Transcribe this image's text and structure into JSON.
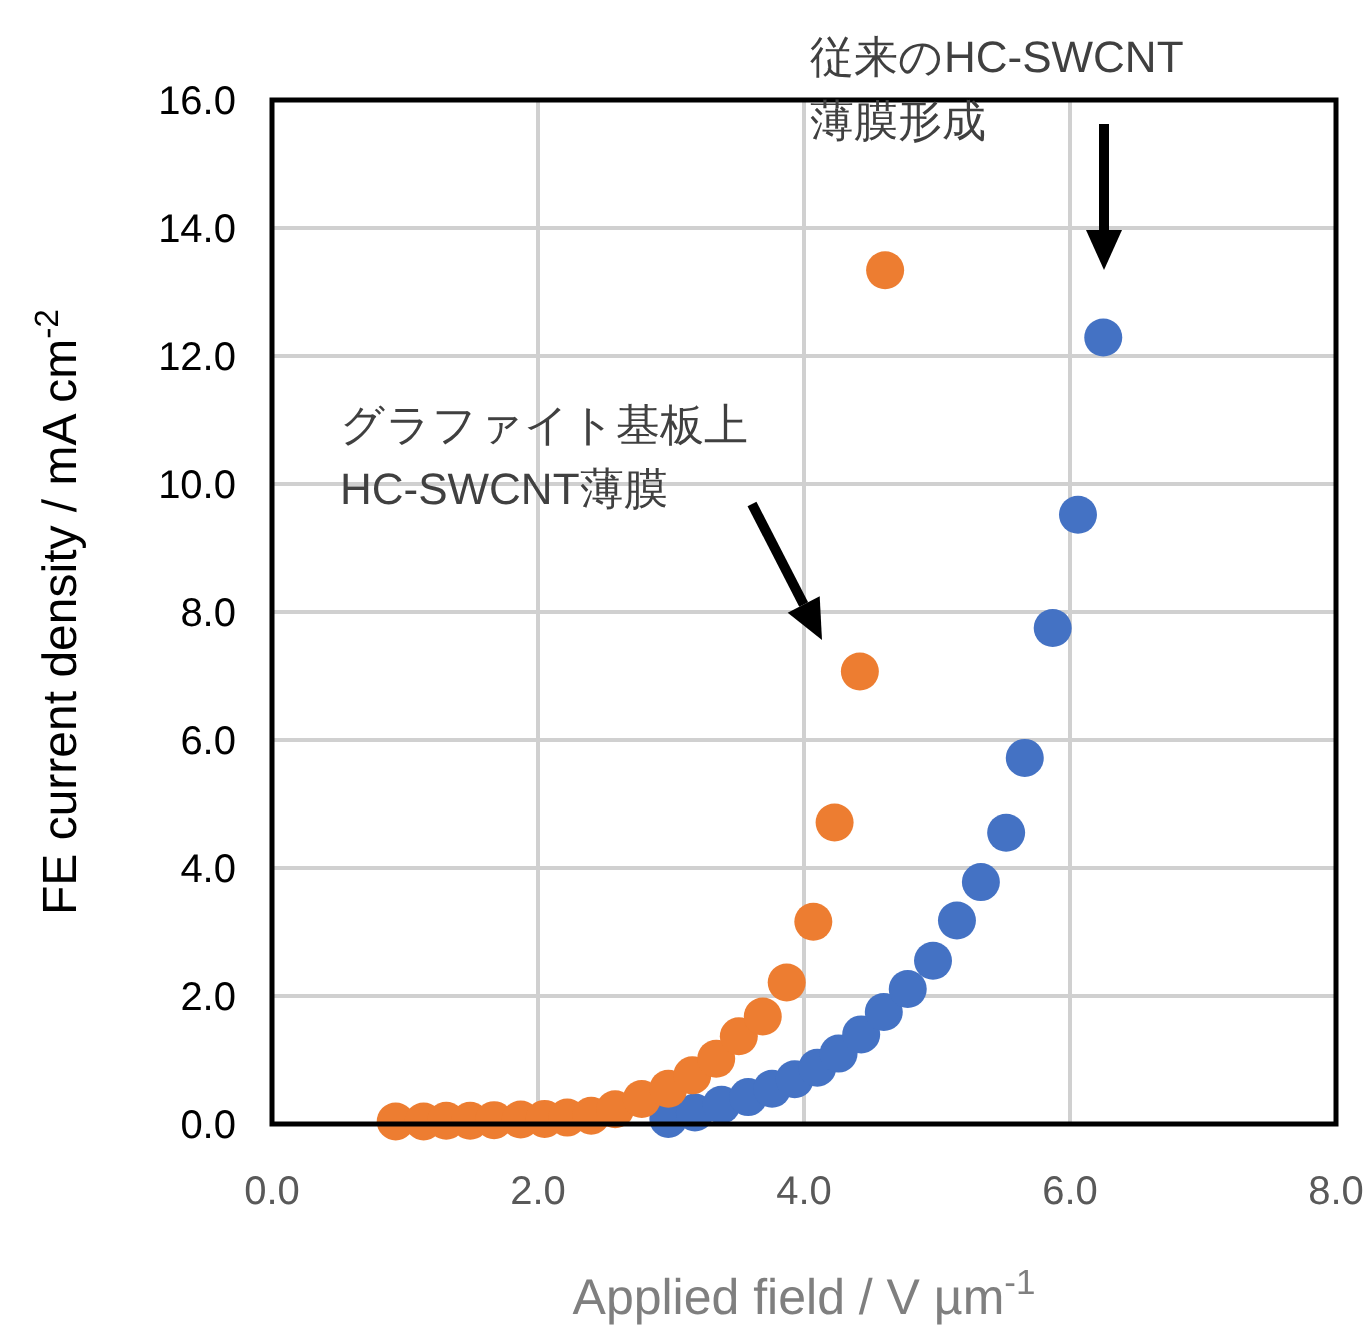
{
  "chart_data": {
    "type": "scatter",
    "xlabel": "Applied field / V µm$^{-1}$",
    "ylabel": "FE current density / mA cm$^{-2}$",
    "xlim": [
      0,
      8
    ],
    "ylim": [
      0,
      16
    ],
    "xticks": [
      {
        "value": 0,
        "label": "0.0"
      },
      {
        "value": 2,
        "label": "2.0"
      },
      {
        "value": 4,
        "label": "4.0"
      },
      {
        "value": 6,
        "label": "6.0"
      },
      {
        "value": 8,
        "label": "8.0"
      }
    ],
    "yticks": [
      {
        "value": 0,
        "label": "0.0"
      },
      {
        "value": 2,
        "label": "2.0"
      },
      {
        "value": 4,
        "label": "4.0"
      },
      {
        "value": 6,
        "label": "6.0"
      },
      {
        "value": 8,
        "label": "8.0"
      },
      {
        "value": 10,
        "label": "10.0"
      },
      {
        "value": 12,
        "label": "12.0"
      },
      {
        "value": 14,
        "label": "14.0"
      },
      {
        "value": 16,
        "label": "16.0"
      }
    ],
    "grid": true,
    "marker": "circle",
    "series": [
      {
        "color": "#4472c4",
        "x": [
          2.98,
          3.18,
          3.38,
          3.58,
          3.76,
          3.93,
          4.1,
          4.26,
          4.43,
          4.6,
          4.78,
          4.97,
          5.15,
          5.33,
          5.52,
          5.66,
          5.87,
          6.06,
          6.25
        ],
        "values": [
          0.08,
          0.18,
          0.3,
          0.42,
          0.55,
          0.7,
          0.88,
          1.1,
          1.4,
          1.75,
          2.11,
          2.55,
          3.18,
          3.78,
          4.55,
          5.72,
          7.75,
          9.52,
          12.29
        ]
      },
      {
        "color": "#ed7d31",
        "x": [
          0.93,
          1.14,
          1.31,
          1.49,
          1.67,
          1.87,
          2.05,
          2.22,
          2.4,
          2.58,
          2.78,
          2.98,
          3.16,
          3.34,
          3.51,
          3.69,
          3.87,
          4.07,
          4.23,
          4.42,
          4.61
        ],
        "values": [
          0.04,
          0.04,
          0.05,
          0.05,
          0.06,
          0.07,
          0.08,
          0.1,
          0.13,
          0.23,
          0.39,
          0.55,
          0.76,
          1.02,
          1.37,
          1.68,
          2.21,
          3.16,
          4.71,
          7.07,
          13.34
        ]
      }
    ],
    "annotations": [
      "グラファイト基板上\nHC-SWCNT薄膜",
      "従来のHC-SWCNT\n薄膜形成"
    ]
  }
}
